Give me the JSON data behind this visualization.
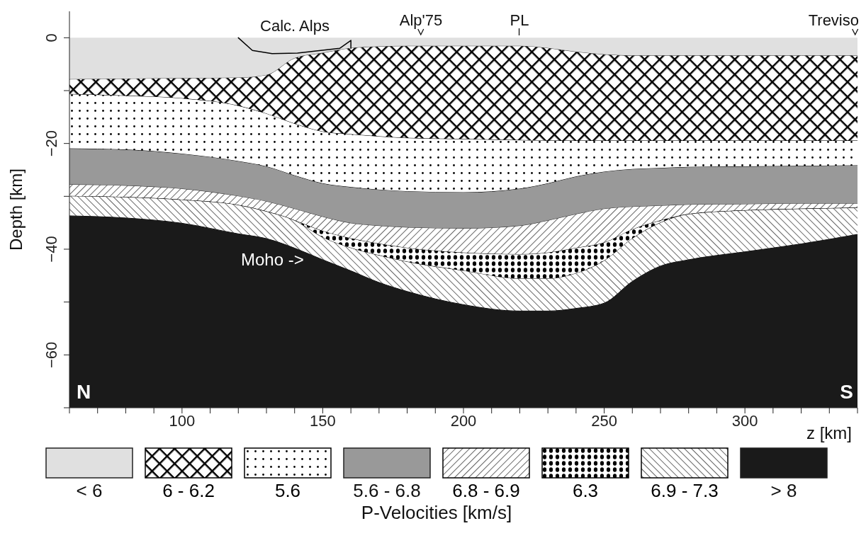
{
  "chart_data": {
    "type": "area",
    "stacked": true,
    "ylabel": "Depth [km]",
    "xlabel": "z [km]",
    "legend_title": "P-Velocities [km/s]",
    "legend": "bottom",
    "xlim": [
      60,
      340
    ],
    "ylim": [
      -70,
      5
    ],
    "xticks": [
      {
        "value": 60,
        "label": null
      },
      {
        "value": 70,
        "label": null
      },
      {
        "value": 80,
        "label": null
      },
      {
        "value": 90,
        "label": null
      },
      100,
      {
        "value": 110,
        "label": null
      },
      {
        "value": 120,
        "label": null
      },
      {
        "value": 130,
        "label": null
      },
      {
        "value": 140,
        "label": null
      },
      150,
      {
        "value": 160,
        "label": null
      },
      {
        "value": 170,
        "label": null
      },
      {
        "value": 180,
        "label": null
      },
      {
        "value": 190,
        "label": null
      },
      200,
      {
        "value": 210,
        "label": null
      },
      {
        "value": 220,
        "label": null
      },
      {
        "value": 230,
        "label": null
      },
      {
        "value": 240,
        "label": null
      },
      250,
      {
        "value": 260,
        "label": null
      },
      {
        "value": 270,
        "label": null
      },
      {
        "value": 280,
        "label": null
      },
      {
        "value": 290,
        "label": null
      },
      300,
      {
        "value": 310,
        "label": null
      },
      {
        "value": 320,
        "label": null
      },
      {
        "value": 330,
        "label": null
      },
      {
        "value": 340,
        "label": null
      }
    ],
    "yticks": [
      0,
      {
        "value": -10,
        "label": null
      },
      {
        "value": -20,
        "label": "−20"
      },
      {
        "value": -30,
        "label": null
      },
      {
        "value": -40,
        "label": "−40"
      },
      {
        "value": -50,
        "label": null
      },
      {
        "value": -60,
        "label": "−60"
      },
      {
        "value": -70,
        "label": null
      }
    ],
    "x": [
      60,
      80,
      100,
      120,
      130,
      140,
      150,
      160,
      170,
      180,
      200,
      220,
      230,
      240,
      250,
      260,
      270,
      280,
      300,
      320,
      340
    ],
    "series": [
      {
        "name": "< 6",
        "color": "#e0e0e0",
        "values": [
          -7.9,
          -7.8,
          -7.7,
          -7.6,
          -7.1,
          -3.9,
          -2.9,
          -2.0,
          -1.7,
          -1.6,
          -1.6,
          -1.6,
          -2.0,
          -2.7,
          -3.2,
          -3.4,
          -3.4,
          -3.4,
          -3.4,
          -3.4,
          -3.4
        ]
      },
      {
        "name": "6 - 6.2",
        "color": "#000000",
        "values": [
          -2.8,
          -3.2,
          -3.8,
          -5.3,
          -7.3,
          -12.4,
          -14.9,
          -16.3,
          -17.0,
          -17.4,
          -17.6,
          -17.8,
          -17.5,
          -16.8,
          -16.3,
          -16.1,
          -16.1,
          -16.1,
          -16.1,
          -16.1,
          -16.1
        ]
      },
      {
        "name": "5.6",
        "color": "#000000",
        "values": [
          -10.3,
          -10.2,
          -10.5,
          -10.5,
          -10.0,
          -9.8,
          -9.8,
          -10.0,
          -10.1,
          -10.1,
          -10.1,
          -9.2,
          -8.1,
          -6.8,
          -5.9,
          -5.4,
          -5.2,
          -5.0,
          -4.9,
          -4.8,
          -4.7
        ]
      },
      {
        "name": "5.6 - 6.8",
        "color": "#999999",
        "values": [
          -6.8,
          -6.8,
          -6.6,
          -6.6,
          -6.6,
          -6.3,
          -6.3,
          -6.8,
          -6.8,
          -6.8,
          -6.8,
          -7.0,
          -7.0,
          -7.1,
          -7.0,
          -7.1,
          -7.1,
          -7.1,
          -7.1,
          -7.1,
          -7.2
        ]
      },
      {
        "name": "6.8 - 6.9",
        "color": "#000000",
        "values": [
          -2.2,
          -2.2,
          -2.1,
          -1.7,
          -1.9,
          -2.2,
          -2.7,
          -2.9,
          -3.4,
          -3.9,
          -4.6,
          -5.4,
          -6.1,
          -6.4,
          -6.4,
          -4.3,
          -2.8,
          -1.8,
          -1.2,
          -1.0,
          -0.8
        ]
      },
      {
        "name": "6.3",
        "color": "#000000",
        "values": [
          0,
          0,
          0,
          0,
          0,
          0,
          -1.2,
          -1.8,
          -2.2,
          -2.6,
          -3.4,
          -4.6,
          -4.9,
          -4.8,
          -3.4,
          -1.7,
          -0.4,
          0,
          0,
          0,
          0
        ]
      },
      {
        "name": "6.9 - 7.3",
        "color": "#000000",
        "values": [
          -3.7,
          -3.9,
          -4.4,
          -5.4,
          -5.1,
          -5.2,
          -4.2,
          -4.3,
          -5.1,
          -5.6,
          -6.4,
          -6.1,
          -6.1,
          -6.6,
          -8.0,
          -8.1,
          -8.2,
          -8.6,
          -7.8,
          -6.6,
          -5.0
        ]
      },
      {
        "name": "> 8",
        "color": "#1a1a1a",
        "values": [
          -36.3,
          -35.9,
          -34.9,
          -32.9,
          -32.0,
          -30.2,
          -28.0,
          -25.9,
          -23.7,
          -22.0,
          -19.5,
          -18.3,
          -18.3,
          -18.8,
          -19.8,
          -23.9,
          -26.8,
          -28.0,
          -29.5,
          -31.0,
          -32.8
        ]
      },
      {
        "type": "line",
        "color": "#000000",
        "x": [
          160,
          160,
          156,
          141,
          132,
          125,
          120
        ],
        "values": [
          -2.0,
          -0.5,
          -2.0,
          -2.9,
          -3.0,
          -2.4,
          0
        ]
      }
    ],
    "annotations": [
      "Calc. Alps",
      "Alp'75",
      "PL",
      "Treviso",
      "Moho ->",
      "N",
      "S"
    ]
  }
}
